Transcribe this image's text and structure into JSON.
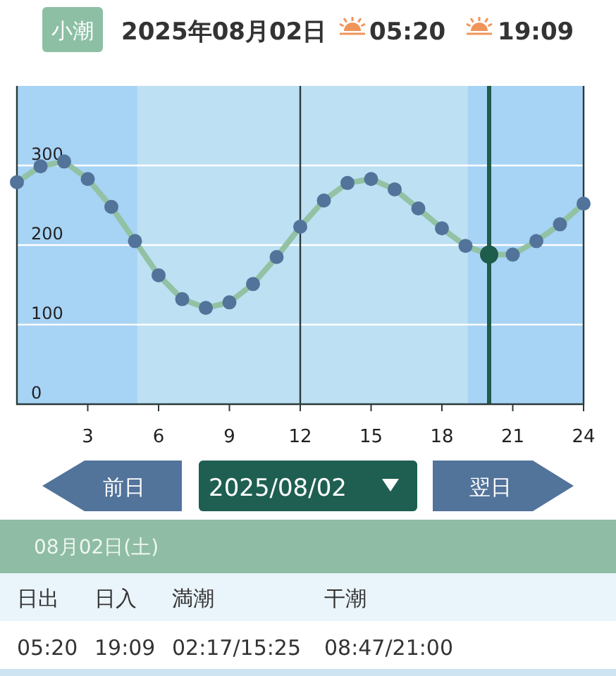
{
  "chart_data": {
    "type": "line",
    "title": "2025年08月02日",
    "annotations": [
      "小潮",
      "05:20",
      "19:09",
      "前日",
      "2025/08/02",
      "翌日",
      "08月02日(土)",
      "日出",
      "日入",
      "満潮",
      "干潮",
      "05:20",
      "19:09",
      "02:17/15:25",
      "08:47/21:00"
    ],
    "x": [
      0,
      1,
      2,
      3,
      4,
      5,
      6,
      7,
      8,
      9,
      10,
      11,
      12,
      13,
      14,
      15,
      16,
      17,
      18,
      19,
      20,
      21,
      22,
      23,
      24
    ],
    "series": [
      {
        "color": "#92c2a4",
        "values": [
          279,
          299,
          305,
          283,
          248,
          205,
          162,
          132,
          121,
          128,
          151,
          185,
          223,
          256,
          278,
          283,
          270,
          246,
          221,
          199,
          188,
          188,
          205,
          226,
          252
        ],
        "colors": [
          "#52739a",
          "#52739a",
          "#52739a",
          "#52739a",
          "#52739a",
          "#52739a",
          "#52739a",
          "#52739a",
          "#52739a",
          "#52739a",
          "#52739a",
          "#52739a",
          "#52739a",
          "#52739a",
          "#52739a",
          "#52739a",
          "#52739a",
          "#52739a",
          "#52739a",
          "#52739a",
          "#1e5c4b",
          "#52739a",
          "#52739a",
          "#52739a",
          "#52739a"
        ]
      }
    ],
    "xlim": [
      0,
      24
    ],
    "xticks": [
      3,
      6,
      9,
      12,
      15,
      18,
      21,
      24
    ],
    "ylim": [
      0,
      400
    ],
    "yticks": [
      0,
      100,
      200,
      300
    ],
    "grid": "y",
    "marker": "circle",
    "line_style": "solid",
    "bands": [
      {
        "axis": "x",
        "from": 0,
        "to": 5.1,
        "color": "#a7d3f5"
      },
      {
        "axis": "x",
        "from": 19.1,
        "to": 24,
        "color": "#a7d3f5"
      }
    ],
    "ref_lines": [
      {
        "axis": "x",
        "value": 12,
        "color": "#2b3a3a"
      },
      {
        "axis": "x",
        "value": 20,
        "color": "#1e5c4b"
      }
    ]
  }
}
